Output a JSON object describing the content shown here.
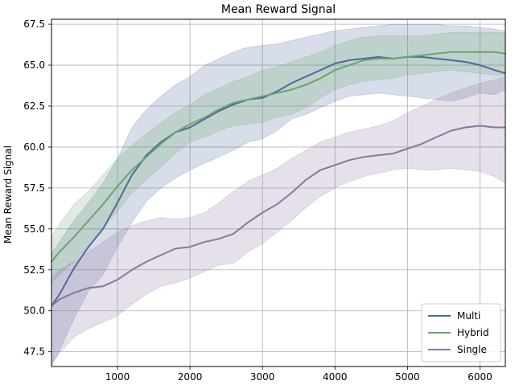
{
  "chart_data": {
    "type": "line",
    "title": "Mean Reward Signal",
    "xlabel": "",
    "ylabel": "Mean Reward Signal",
    "xlim": [
      90,
      6350
    ],
    "ylim": [
      46.6,
      67.8
    ],
    "xticks": [
      1000,
      2000,
      3000,
      4000,
      5000,
      6000
    ],
    "yticks": [
      47.5,
      50.0,
      52.5,
      55.0,
      57.5,
      60.0,
      62.5,
      65.0,
      67.5
    ],
    "ytick_labels": [
      "47.5",
      "50.0",
      "52.5",
      "55.0",
      "57.5",
      "60.0",
      "62.5",
      "65.0",
      "67.5"
    ],
    "grid": true,
    "legend_position": "bottom-right",
    "bands": "shaded min-max range around each series",
    "series": [
      {
        "name": "Multi",
        "color": "#4c6a9c",
        "x": [
          90,
          200,
          400,
          600,
          800,
          1000,
          1200,
          1400,
          1600,
          1800,
          2000,
          2200,
          2400,
          2600,
          2800,
          3000,
          3200,
          3400,
          3600,
          3800,
          4000,
          4200,
          4400,
          4600,
          4800,
          5000,
          5200,
          5400,
          5600,
          5800,
          6000,
          6200,
          6350
        ],
        "values": [
          50.3,
          51.0,
          52.6,
          53.9,
          55.0,
          56.6,
          58.3,
          59.5,
          60.3,
          60.9,
          61.2,
          61.7,
          62.2,
          62.6,
          62.9,
          63.0,
          63.4,
          63.9,
          64.3,
          64.7,
          65.1,
          65.3,
          65.4,
          65.5,
          65.4,
          65.5,
          65.5,
          65.4,
          65.3,
          65.2,
          65.0,
          64.7,
          64.5
        ],
        "upper": [
          53.5,
          54.2,
          55.5,
          56.6,
          57.8,
          59.3,
          61.2,
          62.3,
          63.1,
          63.8,
          64.3,
          65.0,
          65.4,
          65.8,
          66.1,
          66.2,
          66.3,
          66.5,
          66.7,
          66.9,
          67.1,
          67.2,
          67.3,
          67.4,
          67.5,
          67.5,
          67.5,
          67.5,
          67.4,
          67.4,
          67.3,
          67.2,
          67.1
        ],
        "lower": [
          46.6,
          47.6,
          49.5,
          51.2,
          52.2,
          53.9,
          55.4,
          56.7,
          57.5,
          58.1,
          58.6,
          59.0,
          59.4,
          59.8,
          60.3,
          60.5,
          61.0,
          61.7,
          62.0,
          62.4,
          62.8,
          63.1,
          63.2,
          63.3,
          63.2,
          63.1,
          63.0,
          62.9,
          62.8,
          63.0,
          63.3,
          63.2,
          63.5
        ]
      },
      {
        "name": "Hybrid",
        "color": "#6aa56a",
        "x": [
          90,
          200,
          400,
          600,
          800,
          1000,
          1200,
          1400,
          1600,
          1800,
          2000,
          2200,
          2400,
          2600,
          2800,
          3000,
          3200,
          3400,
          3600,
          3800,
          4000,
          4200,
          4400,
          4600,
          4800,
          5000,
          5200,
          5400,
          5600,
          5800,
          6000,
          6200,
          6350
        ],
        "values": [
          53.0,
          53.6,
          54.5,
          55.5,
          56.5,
          57.6,
          58.6,
          59.4,
          60.2,
          60.9,
          61.4,
          61.8,
          62.3,
          62.7,
          62.9,
          63.1,
          63.3,
          63.5,
          63.8,
          64.2,
          64.7,
          65.0,
          65.3,
          65.4,
          65.4,
          65.5,
          65.6,
          65.7,
          65.8,
          65.8,
          65.8,
          65.8,
          65.7
        ],
        "upper": [
          54.5,
          55.3,
          56.5,
          57.3,
          58.3,
          59.3,
          60.1,
          60.8,
          61.5,
          62.1,
          62.6,
          63.2,
          63.6,
          64.0,
          64.3,
          64.7,
          64.9,
          65.2,
          65.5,
          65.8,
          66.2,
          66.5,
          66.7,
          66.8,
          66.8,
          66.8,
          66.8,
          66.9,
          67.0,
          67.0,
          67.0,
          67.0,
          67.0
        ],
        "lower": [
          51.7,
          52.2,
          53.0,
          53.9,
          55.0,
          56.1,
          57.2,
          58.0,
          58.8,
          59.6,
          60.3,
          60.6,
          61.0,
          61.3,
          61.4,
          61.5,
          61.8,
          62.0,
          62.4,
          63.0,
          63.5,
          63.8,
          64.0,
          64.1,
          64.2,
          64.4,
          64.5,
          64.6,
          64.7,
          64.6,
          64.5,
          64.4,
          64.4
        ]
      },
      {
        "name": "Single",
        "color": "#8f74a0",
        "x": [
          90,
          200,
          400,
          600,
          800,
          1000,
          1200,
          1400,
          1600,
          1800,
          2000,
          2200,
          2400,
          2600,
          2800,
          3000,
          3200,
          3400,
          3600,
          3800,
          4000,
          4200,
          4400,
          4600,
          4800,
          5000,
          5200,
          5400,
          5600,
          5800,
          6000,
          6200,
          6350
        ],
        "values": [
          50.3,
          50.7,
          51.1,
          51.4,
          51.5,
          51.9,
          52.5,
          53.0,
          53.4,
          53.8,
          53.9,
          54.2,
          54.4,
          54.7,
          55.4,
          56.0,
          56.5,
          57.2,
          58.0,
          58.6,
          58.9,
          59.2,
          59.4,
          59.5,
          59.6,
          59.9,
          60.2,
          60.6,
          61.0,
          61.2,
          61.3,
          61.2,
          61.2
        ],
        "upper": [
          52.0,
          52.5,
          53.0,
          53.6,
          54.2,
          54.8,
          55.2,
          55.5,
          55.7,
          55.6,
          55.7,
          56.0,
          56.6,
          57.3,
          57.9,
          58.3,
          58.7,
          59.3,
          59.8,
          60.3,
          60.6,
          60.9,
          61.1,
          61.3,
          61.6,
          62.1,
          62.5,
          62.9,
          63.3,
          63.6,
          63.9,
          64.1,
          64.3
        ],
        "lower": [
          46.8,
          47.4,
          48.4,
          48.9,
          49.3,
          49.7,
          50.4,
          51.0,
          51.5,
          51.7,
          52.0,
          52.4,
          52.8,
          52.9,
          53.6,
          54.1,
          54.8,
          55.5,
          56.3,
          57.0,
          57.5,
          57.9,
          58.2,
          58.4,
          58.6,
          58.7,
          58.6,
          58.6,
          58.7,
          58.6,
          58.5,
          58.2,
          57.8
        ]
      }
    ]
  }
}
